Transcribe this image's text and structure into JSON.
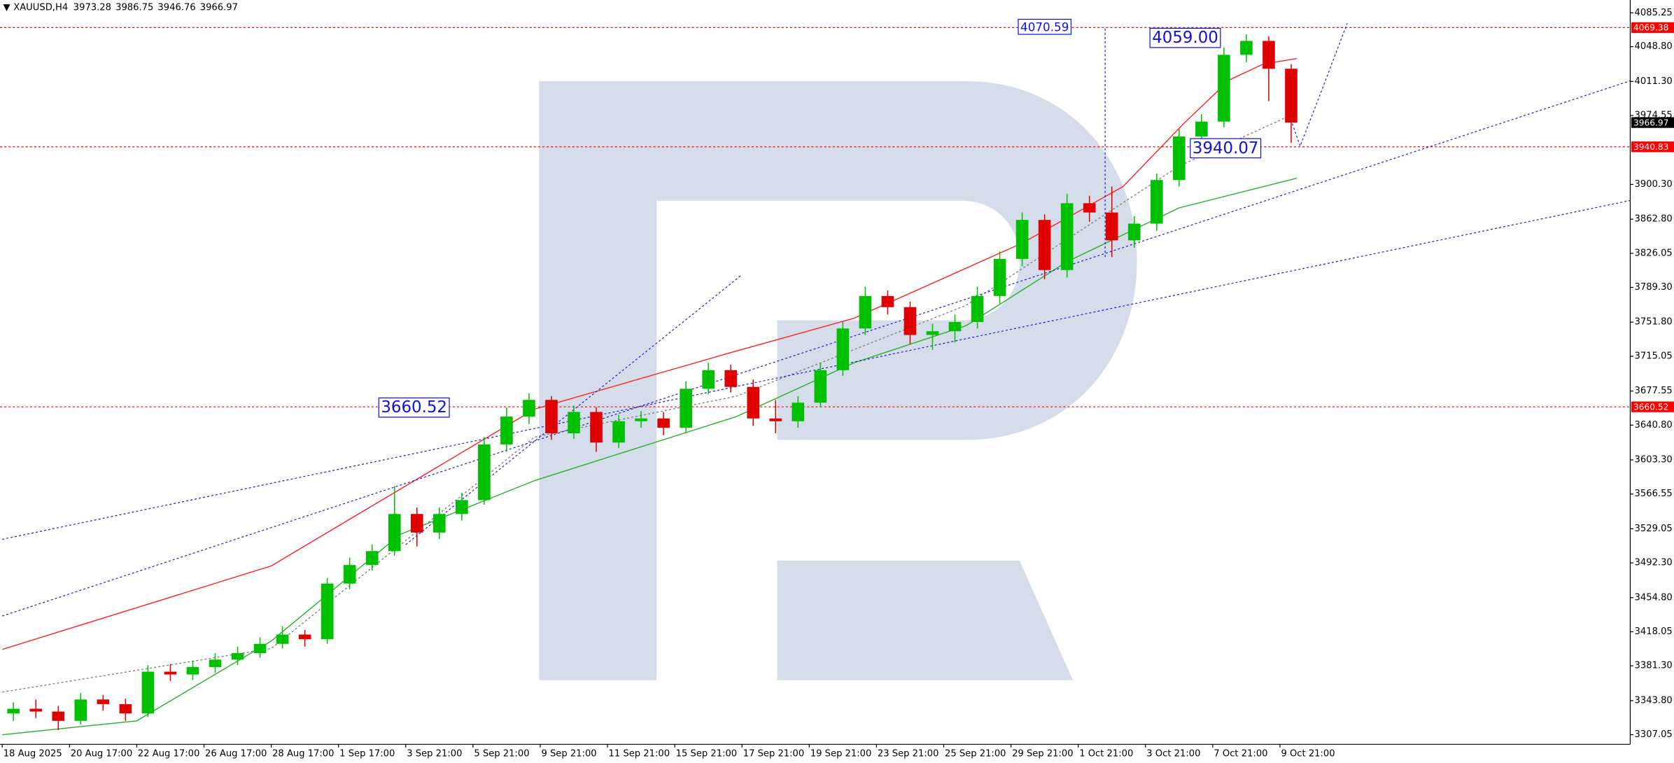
{
  "chart_data": {
    "type": "candlestick",
    "symbol": "XAUUSD,H4",
    "ohlc": [
      3973.28,
      3986.75,
      3946.76,
      3966.97
    ],
    "xlim": [
      -0.4,
      290.5
    ],
    "ylim": [
      3296.7,
      4099.1
    ],
    "xticks": [
      {
        "value": 0,
        "label": "18 Aug 2025"
      },
      {
        "value": 12,
        "label": "20 Aug 17:00"
      },
      {
        "value": 24,
        "label": "22 Aug 17:00"
      },
      {
        "value": 36,
        "label": "26 Aug 17:00"
      },
      {
        "value": 48,
        "label": "28 Aug 17:00"
      },
      {
        "value": 60,
        "label": "1 Sep 17:00"
      },
      {
        "value": 72,
        "label": "3 Sep 21:00"
      },
      {
        "value": 84,
        "label": "5 Sep 21:00"
      },
      {
        "value": 96,
        "label": "9 Sep 21:00"
      },
      {
        "value": 108,
        "label": "11 Sep 21:00"
      },
      {
        "value": 120,
        "label": "15 Sep 21:00"
      },
      {
        "value": 132,
        "label": "17 Sep 21:00"
      },
      {
        "value": 144,
        "label": "19 Sep 21:00"
      },
      {
        "value": 156,
        "label": "23 Sep 21:00"
      },
      {
        "value": 168,
        "label": "25 Sep 21:00"
      },
      {
        "value": 180,
        "label": "29 Sep 21:00"
      },
      {
        "value": 192,
        "label": "1 Oct 21:00"
      },
      {
        "value": 204,
        "label": "3 Oct 21:00"
      },
      {
        "value": 216,
        "label": "7 Oct 21:00"
      },
      {
        "value": 228,
        "label": "9 Oct 21:00"
      }
    ],
    "yticks": [
      4085.25,
      {
        "value": 4048.8,
        "label": "4048.80"
      },
      {
        "value": 4011.3,
        "label": "4011.30"
      },
      3974.55,
      {
        "value": 3900.3,
        "label": "3900.30"
      },
      {
        "value": 3862.8,
        "label": "3862.80"
      },
      3826.05,
      {
        "value": 3789.3,
        "label": "3789.30"
      },
      {
        "value": 3751.8,
        "label": "3751.80"
      },
      3715.05,
      3677.55,
      {
        "value": 3640.8,
        "label": "3640.80"
      },
      {
        "value": 3603.3,
        "label": "3603.30"
      },
      3566.55,
      3529.05,
      {
        "value": 3492.3,
        "label": "3492.30"
      },
      {
        "value": 3454.8,
        "label": "3454.80"
      },
      3418.05,
      {
        "value": 3381.3,
        "label": "3381.30"
      },
      {
        "value": 3343.8,
        "label": "3343.80"
      },
      3307.05
    ],
    "up_color": "#00c000",
    "down_color": "#e00000",
    "candles": {
      "x": [
        2,
        6,
        10,
        14,
        18,
        22,
        26,
        30,
        34,
        38,
        42,
        46,
        50,
        54,
        58,
        62,
        66,
        70,
        74,
        78,
        82,
        86,
        90,
        94,
        98,
        102,
        106,
        110,
        114,
        118,
        122,
        126,
        130,
        134,
        138,
        142,
        146,
        150,
        154,
        158,
        162,
        166,
        170,
        174,
        178,
        182,
        186,
        190,
        194,
        198,
        202,
        206,
        210,
        214,
        218,
        222,
        226,
        230
      ],
      "open": [
        3330,
        3335,
        3332,
        3322,
        3345,
        3340,
        3330,
        3375,
        3372,
        3380,
        3388,
        3395,
        3405,
        3415,
        3410,
        3470,
        3490,
        3505,
        3545,
        3525,
        3545,
        3560,
        3620,
        3650,
        3668,
        3632,
        3655,
        3622,
        3645,
        3648,
        3638,
        3680,
        3700,
        3682,
        3648,
        3645,
        3665,
        3700,
        3745,
        3780,
        3768,
        3738,
        3742,
        3752,
        3780,
        3820,
        3862,
        3808,
        3880,
        3870,
        3840,
        3858,
        3905,
        3952,
        3968,
        4040,
        4055,
        4025
      ],
      "high": [
        3342,
        3345,
        3338,
        3352,
        3350,
        3346,
        3382,
        3383,
        3387,
        3395,
        3402,
        3412,
        3424,
        3420,
        3476,
        3498,
        3512,
        3575,
        3552,
        3552,
        3568,
        3628,
        3660,
        3675,
        3672,
        3662,
        3660,
        3652,
        3656,
        3655,
        3688,
        3708,
        3706,
        3690,
        3668,
        3672,
        3708,
        3752,
        3790,
        3786,
        3774,
        3750,
        3760,
        3790,
        3828,
        3870,
        3868,
        3890,
        3888,
        3898,
        3866,
        3912,
        3960,
        3976,
        4048,
        4062,
        4060,
        4030
      ],
      "low": [
        3322,
        3325,
        3312,
        3318,
        3333,
        3322,
        3326,
        3365,
        3366,
        3374,
        3382,
        3390,
        3400,
        3402,
        3405,
        3464,
        3484,
        3500,
        3510,
        3518,
        3538,
        3555,
        3612,
        3642,
        3625,
        3626,
        3612,
        3616,
        3638,
        3630,
        3632,
        3674,
        3676,
        3640,
        3632,
        3638,
        3660,
        3694,
        3738,
        3760,
        3728,
        3722,
        3730,
        3745,
        3772,
        3812,
        3798,
        3800,
        3860,
        3822,
        3832,
        3850,
        3898,
        3945,
        3962,
        4032,
        3990,
        3945
      ],
      "close": [
        3335,
        3332,
        3322,
        3345,
        3340,
        3330,
        3375,
        3372,
        3380,
        3388,
        3395,
        3405,
        3415,
        3410,
        3470,
        3490,
        3505,
        3545,
        3525,
        3545,
        3560,
        3620,
        3650,
        3668,
        3632,
        3655,
        3622,
        3645,
        3648,
        3638,
        3680,
        3700,
        3682,
        3648,
        3645,
        3665,
        3700,
        3745,
        3780,
        3768,
        3738,
        3742,
        3752,
        3780,
        3820,
        3862,
        3808,
        3880,
        3870,
        3840,
        3858,
        3905,
        3952,
        3968,
        4040,
        4055,
        4025,
        3967
      ]
    },
    "lines": [
      {
        "color": "#ff1a1a",
        "x": [
          0,
          48,
          95,
          130,
          152,
          182,
          200,
          211,
          219,
          225,
          231
        ],
        "values": [
          3399,
          3489,
          3658,
          3719,
          3756,
          3837,
          3898,
          3967,
          4013,
          4030,
          4036
        ]
      },
      {
        "color": "#22b022",
        "x": [
          0,
          24,
          48,
          71,
          95,
          131,
          152,
          172,
          190,
          210,
          231
        ],
        "values": [
          3307,
          3322,
          3408,
          3523,
          3581,
          3650,
          3708,
          3748,
          3817,
          3875,
          3907
        ]
      },
      {
        "color": "#808080",
        "x": [
          0,
          48,
          95,
          131,
          172,
          210,
          230
        ],
        "values": [
          3353,
          3400,
          3628,
          3672,
          3770,
          3920,
          3975
        ]
      }
    ],
    "trendlines": [
      {
        "color": "#2020d0",
        "x": [
          0,
          290.5
        ],
        "values": [
          3517.7,
          3883
        ]
      },
      {
        "color": "#2020d0",
        "x": [
          0,
          290.5
        ],
        "values": [
          3435,
          4012
        ]
      },
      {
        "color": "#2020d0",
        "x": [
          72,
          132
        ],
        "values": [
          3512,
          3803
        ]
      },
      {
        "color": "#2020d0",
        "x": [
          196.8,
          196.8
        ],
        "values": [
          3822,
          4070.59
        ]
      },
      {
        "color": "#2020d0",
        "x": [
          229.7,
          231.6,
          235.8,
          240
        ],
        "values": [
          3974.5,
          3941.6,
          4007.2,
          4074
        ]
      }
    ],
    "levels": [
      {
        "value": 4069.38,
        "color": "#ff0000"
      },
      {
        "value": 3940.83,
        "color": "#ff0000"
      },
      {
        "value": 3660.52,
        "color": "#ff0000"
      }
    ],
    "last_price": 3966.97,
    "annotations": [
      {
        "label": "4070.59",
        "value": 4070.59,
        "x": 181.3
      },
      {
        "label": "4059.00",
        "value": 4059,
        "x": 204.8
      },
      {
        "label": "3940.07",
        "value": 3940.07,
        "x": 212
      },
      {
        "label": "3660.52",
        "value": 3660.52,
        "x": 67.2
      }
    ]
  }
}
